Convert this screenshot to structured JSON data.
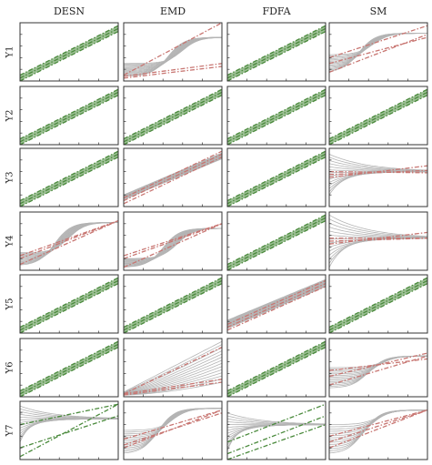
{
  "chart_data": {
    "type": "line",
    "columns": [
      "DESN",
      "EMD",
      "FDFA",
      "SM"
    ],
    "rows": [
      "Y1",
      "Y2",
      "Y3",
      "Y4",
      "Y5",
      "Y6",
      "Y7"
    ],
    "colors": {
      "pass": "#4a8a3c",
      "fail": "#c87672",
      "curves": "#b4b4b4",
      "axes": "#333333"
    },
    "x_range": [
      0,
      1
    ],
    "y_range": [
      0,
      1
    ],
    "panels": [
      [
        {
          "status": "pass",
          "curves": {
            "kind": "none"
          },
          "bounds": [
            [
              0.05,
              0.9
            ],
            [
              0.0,
              0.85
            ],
            [
              0.1,
              0.95
            ]
          ]
        },
        {
          "status": "fail",
          "curves": {
            "kind": "sig",
            "lo_a": 0.08,
            "lo_b": 0.3,
            "hi": 0.75,
            "mid": 0.45
          },
          "bounds": [
            [
              0.1,
              1.0
            ],
            [
              0.08,
              0.3
            ],
            [
              0.05,
              0.25
            ]
          ]
        },
        {
          "status": "pass",
          "curves": {
            "kind": "none"
          },
          "bounds": [
            [
              0.05,
              0.9
            ],
            [
              0.0,
              0.85
            ],
            [
              0.1,
              0.95
            ]
          ]
        },
        {
          "status": "fail",
          "curves": {
            "kind": "sig",
            "lo_a": 0.15,
            "lo_b": 0.45,
            "hi": 0.82,
            "mid": 0.3
          },
          "bounds": [
            [
              0.3,
              0.75
            ],
            [
              0.15,
              0.8
            ],
            [
              0.4,
              0.95
            ]
          ]
        }
      ],
      [
        {
          "status": "pass",
          "curves": {
            "kind": "none"
          },
          "bounds": [
            [
              0.05,
              0.9
            ],
            [
              0.0,
              0.85
            ],
            [
              0.1,
              0.95
            ]
          ]
        },
        {
          "status": "pass",
          "curves": {
            "kind": "none"
          },
          "bounds": [
            [
              0.05,
              0.9
            ],
            [
              0.0,
              0.85
            ],
            [
              0.1,
              0.95
            ]
          ]
        },
        {
          "status": "pass",
          "curves": {
            "kind": "none"
          },
          "bounds": [
            [
              0.05,
              0.9
            ],
            [
              0.0,
              0.85
            ],
            [
              0.1,
              0.95
            ]
          ]
        },
        {
          "status": "pass",
          "curves": {
            "kind": "none"
          },
          "bounds": [
            [
              0.05,
              0.9
            ],
            [
              0.0,
              0.85
            ],
            [
              0.1,
              0.95
            ]
          ]
        }
      ],
      [
        {
          "status": "pass",
          "curves": {
            "kind": "none"
          },
          "bounds": [
            [
              0.05,
              0.9
            ],
            [
              0.0,
              0.85
            ],
            [
              0.1,
              0.95
            ]
          ]
        },
        {
          "status": "fail",
          "curves": {
            "kind": "band",
            "lo": [
              0.12,
              0.82
            ],
            "hi": [
              0.2,
              0.92
            ]
          },
          "bounds": [
            [
              0.1,
              0.9
            ],
            [
              0.05,
              0.85
            ],
            [
              0.15,
              0.95
            ]
          ]
        },
        {
          "status": "pass",
          "curves": {
            "kind": "none"
          },
          "bounds": [
            [
              0.05,
              0.9
            ],
            [
              0.0,
              0.85
            ],
            [
              0.1,
              0.95
            ]
          ]
        },
        {
          "status": "fail",
          "curves": {
            "kind": "fan",
            "lo_a": 0.2,
            "lo_b": 0.9,
            "hi": 0.6,
            "mid": 0.15
          },
          "bounds": [
            [
              0.5,
              0.7
            ],
            [
              0.55,
              0.62
            ],
            [
              0.6,
              0.58
            ]
          ]
        }
      ],
      [
        {
          "status": "fail",
          "curves": {
            "kind": "sig",
            "lo_a": 0.08,
            "lo_b": 0.3,
            "hi": 0.82,
            "mid": 0.35
          },
          "bounds": [
            [
              0.1,
              0.85
            ],
            [
              0.2,
              0.85
            ],
            [
              0.25,
              0.85
            ]
          ]
        },
        {
          "status": "fail",
          "curves": {
            "kind": "sig",
            "lo_a": 0.05,
            "lo_b": 0.2,
            "hi": 0.72,
            "mid": 0.4
          },
          "bounds": [
            [
              0.05,
              0.8
            ],
            [
              0.2,
              0.8
            ],
            [
              0.25,
              0.8
            ]
          ]
        },
        {
          "status": "pass",
          "curves": {
            "kind": "none"
          },
          "bounds": [
            [
              0.05,
              0.9
            ],
            [
              0.0,
              0.85
            ],
            [
              0.1,
              0.95
            ]
          ]
        },
        {
          "status": "fail",
          "curves": {
            "kind": "fan",
            "lo_a": 0.05,
            "lo_b": 0.95,
            "hi": 0.55,
            "mid": 0.15
          },
          "bounds": [
            [
              0.45,
              0.65
            ],
            [
              0.5,
              0.55
            ],
            [
              0.55,
              0.55
            ]
          ]
        }
      ],
      [
        {
          "status": "pass",
          "curves": {
            "kind": "none"
          },
          "bounds": [
            [
              0.05,
              0.9
            ],
            [
              0.0,
              0.85
            ],
            [
              0.1,
              0.95
            ]
          ]
        },
        {
          "status": "pass",
          "curves": {
            "kind": "none"
          },
          "bounds": [
            [
              0.05,
              0.9
            ],
            [
              0.0,
              0.85
            ],
            [
              0.1,
              0.95
            ]
          ]
        },
        {
          "status": "fail",
          "curves": {
            "kind": "band",
            "lo": [
              0.08,
              0.8
            ],
            "hi": [
              0.22,
              0.92
            ]
          },
          "bounds": [
            [
              0.1,
              0.85
            ],
            [
              0.05,
              0.8
            ],
            [
              0.15,
              0.9
            ]
          ]
        },
        {
          "status": "pass",
          "curves": {
            "kind": "none"
          },
          "bounds": [
            [
              0.05,
              0.9
            ],
            [
              0.0,
              0.85
            ],
            [
              0.1,
              0.95
            ]
          ]
        }
      ],
      [
        {
          "status": "pass",
          "curves": {
            "kind": "none"
          },
          "bounds": [
            [
              0.05,
              0.9
            ],
            [
              0.0,
              0.85
            ],
            [
              0.1,
              0.95
            ]
          ]
        },
        {
          "status": "fail",
          "curves": {
            "kind": "ramp",
            "lo": [
              0.03,
              0.25
            ],
            "hi": [
              0.08,
              0.95
            ]
          },
          "bounds": [
            [
              0.05,
              0.85
            ],
            [
              0.03,
              0.25
            ],
            [
              0.05,
              0.3
            ]
          ]
        },
        {
          "status": "pass",
          "curves": {
            "kind": "none"
          },
          "bounds": [
            [
              0.05,
              0.9
            ],
            [
              0.0,
              0.85
            ],
            [
              0.1,
              0.95
            ]
          ]
        },
        {
          "status": "fail",
          "curves": {
            "kind": "sig",
            "lo_a": 0.15,
            "lo_b": 0.5,
            "hi": 0.7,
            "mid": 0.4
          },
          "bounds": [
            [
              0.35,
              0.75
            ],
            [
              0.2,
              0.7
            ],
            [
              0.45,
              0.65
            ]
          ]
        }
      ],
      [
        {
          "status": "pass",
          "curves": {
            "kind": "fan",
            "lo_a": 0.3,
            "lo_b": 0.92,
            "hi": 0.7,
            "mid": 0.1
          },
          "bounds": [
            [
              0.05,
              0.95
            ],
            [
              0.2,
              0.75
            ],
            [
              0.6,
              0.95
            ]
          ]
        },
        {
          "status": "fail",
          "curves": {
            "kind": "sig",
            "lo_a": 0.1,
            "lo_b": 0.5,
            "hi": 0.88,
            "mid": 0.35
          },
          "bounds": [
            [
              0.2,
              0.85
            ],
            [
              0.25,
              0.8
            ],
            [
              0.35,
              0.85
            ]
          ]
        },
        {
          "status": "pass",
          "curves": {
            "kind": "fan",
            "lo_a": 0.15,
            "lo_b": 0.8,
            "hi": 0.6,
            "mid": 0.1
          },
          "bounds": [
            [
              0.3,
              0.95
            ],
            [
              0.1,
              0.75
            ],
            [
              0.0,
              0.6
            ]
          ]
        },
        {
          "status": "fail",
          "curves": {
            "kind": "sig",
            "lo_a": 0.1,
            "lo_b": 0.6,
            "hi": 0.85,
            "mid": 0.35
          },
          "bounds": [
            [
              0.2,
              0.85
            ],
            [
              0.3,
              0.85
            ],
            [
              0.4,
              0.85
            ]
          ]
        }
      ]
    ]
  }
}
